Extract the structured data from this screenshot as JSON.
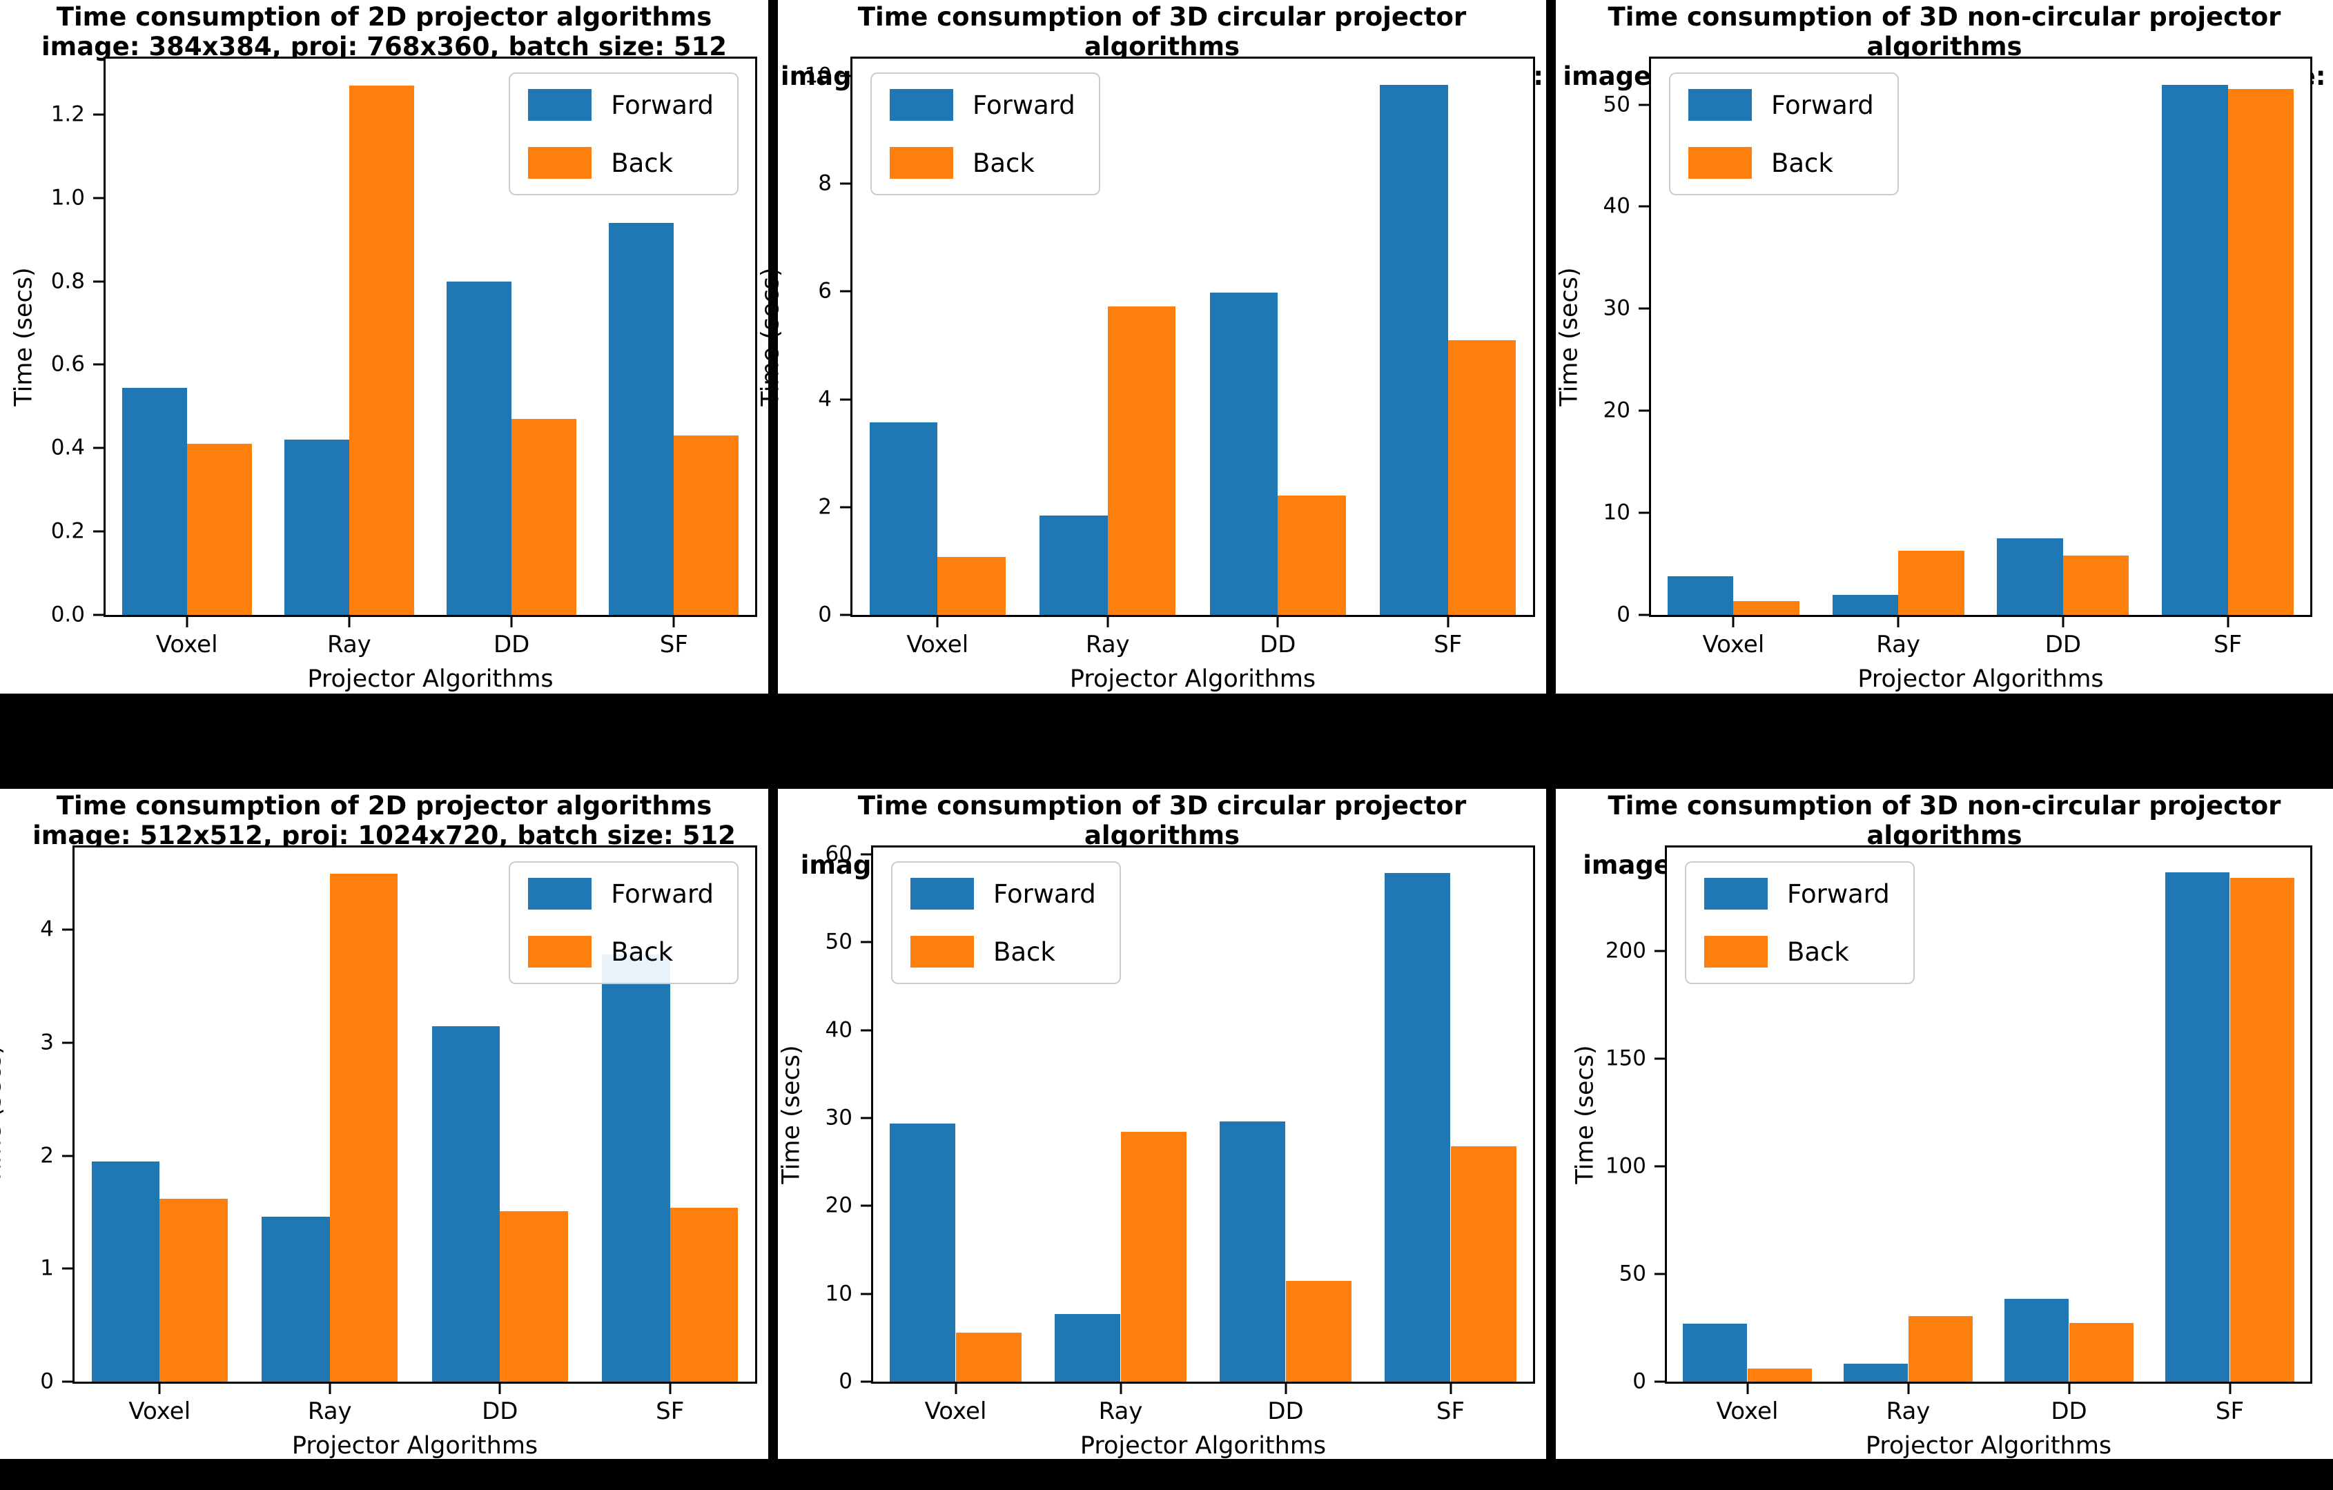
{
  "figure": {
    "background": "#000000",
    "panel_background": "#ffffff"
  },
  "colors": {
    "forward": "#1f77b4",
    "back": "#ff7f0e",
    "axis": "#000000"
  },
  "chart_data": [
    {
      "type": "bar",
      "title_line1": "Time consumption of 2D projector algorithms",
      "title_line2": "image: 384x384, proj: 768x360, batch size: 512",
      "xlabel": "Projector Algorithms",
      "ylabel": "Time (secs)",
      "categories": [
        "Voxel",
        "Ray",
        "DD",
        "SF"
      ],
      "series": [
        {
          "name": "Forward",
          "color": "#1f77b4",
          "values": [
            0.545,
            0.42,
            0.8,
            0.94
          ]
        },
        {
          "name": "Back",
          "color": "#ff7f0e",
          "values": [
            0.41,
            1.27,
            0.47,
            0.43
          ]
        }
      ],
      "yticks": [
        0.0,
        0.2,
        0.4,
        0.6,
        0.8,
        1.0,
        1.2
      ],
      "ytick_labels": [
        "0.0",
        "0.2",
        "0.4",
        "0.6",
        "0.8",
        "1.0",
        "1.2"
      ],
      "ylim": [
        0,
        1.334
      ],
      "grid": false,
      "legend_position": "upper-right"
    },
    {
      "type": "bar",
      "title_line1": "Time consumption of 3D circular projector algorithms",
      "title_line2": "image: 384x384x384, proj: 768x768x360, batch size: 4",
      "xlabel": "Projector Algorithms",
      "ylabel": "Time (secs)",
      "categories": [
        "Voxel",
        "Ray",
        "DD",
        "SF"
      ],
      "series": [
        {
          "name": "Forward",
          "color": "#1f77b4",
          "values": [
            3.57,
            1.84,
            5.98,
            9.83
          ]
        },
        {
          "name": "Back",
          "color": "#ff7f0e",
          "values": [
            1.07,
            5.72,
            2.21,
            5.1
          ]
        }
      ],
      "yticks": [
        0,
        2,
        4,
        6,
        8,
        10
      ],
      "ytick_labels": [
        "0",
        "2",
        "4",
        "6",
        "8",
        "10"
      ],
      "ylim": [
        0,
        10.32
      ],
      "grid": false,
      "legend_position": "upper-left"
    },
    {
      "type": "bar",
      "title_line1": "Time consumption of 3D non-circular projector algorithms",
      "title_line2": "image: 384x384x384, proj: 768x768x360, batch size: 4",
      "xlabel": "Projector Algorithms",
      "ylabel": "Time (secs)",
      "categories": [
        "Voxel",
        "Ray",
        "DD",
        "SF"
      ],
      "series": [
        {
          "name": "Forward",
          "color": "#1f77b4",
          "values": [
            3.8,
            1.95,
            7.5,
            51.9
          ]
        },
        {
          "name": "Back",
          "color": "#ff7f0e",
          "values": [
            1.35,
            6.3,
            5.85,
            51.5
          ]
        }
      ],
      "yticks": [
        0,
        10,
        20,
        30,
        40,
        50
      ],
      "ytick_labels": [
        "0",
        "10",
        "20",
        "30",
        "40",
        "50"
      ],
      "ylim": [
        0,
        54.5
      ],
      "grid": false,
      "legend_position": "upper-left"
    },
    {
      "type": "bar",
      "title_line1": "Time consumption of 2D projector algorithms",
      "title_line2": "image: 512x512, proj: 1024x720, batch size: 512",
      "xlabel": "Projector Algorithms",
      "ylabel": "Time (secs)",
      "categories": [
        "Voxel",
        "Ray",
        "DD",
        "SF"
      ],
      "series": [
        {
          "name": "Forward",
          "color": "#1f77b4",
          "values": [
            1.95,
            1.46,
            3.15,
            3.78
          ]
        },
        {
          "name": "Back",
          "color": "#ff7f0e",
          "values": [
            1.62,
            4.5,
            1.51,
            1.54
          ]
        }
      ],
      "yticks": [
        0,
        1,
        2,
        3,
        4
      ],
      "ytick_labels": [
        "0",
        "1",
        "2",
        "3",
        "4"
      ],
      "ylim": [
        0,
        4.73
      ],
      "grid": false,
      "legend_position": "upper-right"
    },
    {
      "type": "bar",
      "title_line1": "Time consumption of 3D circular projector algorithms",
      "title_line2": "image: 512x512x512, proj: 1024x1024x720, batch size: 4",
      "xlabel": "Projector Algorithms",
      "ylabel": "Time (secs)",
      "categories": [
        "Voxel",
        "Ray",
        "DD",
        "SF"
      ],
      "series": [
        {
          "name": "Forward",
          "color": "#1f77b4",
          "values": [
            29.4,
            7.7,
            29.6,
            57.9
          ]
        },
        {
          "name": "Back",
          "color": "#ff7f0e",
          "values": [
            5.6,
            28.4,
            11.5,
            26.8
          ]
        }
      ],
      "yticks": [
        0,
        10,
        20,
        30,
        40,
        50,
        60
      ],
      "ytick_labels": [
        "0",
        "10",
        "20",
        "30",
        "40",
        "50",
        "60"
      ],
      "ylim": [
        0,
        60.8
      ],
      "grid": false,
      "legend_position": "upper-left"
    },
    {
      "type": "bar",
      "title_line1": "Time consumption of 3D non-circular projector algorithms",
      "title_line2": "image: 512x512x512, proj: 1024x1024x720, batch size: 4",
      "xlabel": "Projector Algorithms",
      "ylabel": "Time (secs)",
      "categories": [
        "Voxel",
        "Ray",
        "DD",
        "SF"
      ],
      "series": [
        {
          "name": "Forward",
          "color": "#1f77b4",
          "values": [
            27.0,
            8.4,
            38.6,
            236.5
          ]
        },
        {
          "name": "Back",
          "color": "#ff7f0e",
          "values": [
            6.2,
            30.6,
            27.3,
            233.9
          ]
        }
      ],
      "yticks": [
        0,
        50,
        100,
        150,
        200
      ],
      "ytick_labels": [
        "0",
        "50",
        "100",
        "150",
        "200"
      ],
      "ylim": [
        0,
        248
      ],
      "grid": false,
      "legend_position": "upper-left"
    }
  ]
}
